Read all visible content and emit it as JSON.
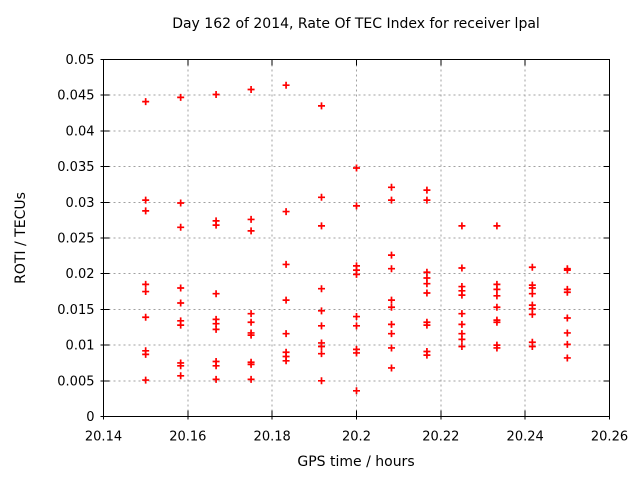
{
  "chart_data": {
    "type": "scatter",
    "title": "Day 162 of 2014, Rate Of TEC Index for receiver lpal",
    "xlabel": "GPS time / hours",
    "ylabel": "ROTI / TECUs",
    "xlim": [
      20.14,
      20.26
    ],
    "ylim": [
      0,
      0.05
    ],
    "xticks": [
      20.14,
      20.16,
      20.18,
      20.2,
      20.22,
      20.24,
      20.26
    ],
    "xtick_labels": [
      "20.14",
      "20.16",
      "20.18",
      "20.2",
      "20.22",
      "20.24",
      "20.26"
    ],
    "yticks": [
      0,
      0.005,
      0.01,
      0.015,
      0.02,
      0.025,
      0.03,
      0.035,
      0.04,
      0.045,
      0.05
    ],
    "ytick_labels": [
      "0",
      "0.005",
      "0.01",
      "0.015",
      "0.02",
      "0.025",
      "0.03",
      "0.035",
      "0.04",
      "0.045",
      "0.05"
    ],
    "grid": true,
    "legend": "none",
    "marker": {
      "shape": "plus",
      "color": "#ff0000",
      "size": 7
    },
    "colors": {
      "marker": "#ff0000",
      "grid": "#a0a0a0",
      "border": "#000000",
      "background": "#ffffff"
    },
    "points": [
      [
        20.15,
        0.0441
      ],
      [
        20.15,
        0.0303
      ],
      [
        20.15,
        0.0288
      ],
      [
        20.15,
        0.0185
      ],
      [
        20.15,
        0.0175
      ],
      [
        20.15,
        0.0139
      ],
      [
        20.15,
        0.0092
      ],
      [
        20.15,
        0.0087
      ],
      [
        20.15,
        0.0051
      ],
      [
        20.1583,
        0.0447
      ],
      [
        20.1583,
        0.0299
      ],
      [
        20.1583,
        0.0265
      ],
      [
        20.1583,
        0.018
      ],
      [
        20.1583,
        0.0159
      ],
      [
        20.1583,
        0.0134
      ],
      [
        20.1583,
        0.0128
      ],
      [
        20.1583,
        0.0075
      ],
      [
        20.1583,
        0.0071
      ],
      [
        20.1583,
        0.0057
      ],
      [
        20.1667,
        0.0451
      ],
      [
        20.1667,
        0.0274
      ],
      [
        20.1667,
        0.0268
      ],
      [
        20.1667,
        0.0172
      ],
      [
        20.1667,
        0.0136
      ],
      [
        20.1667,
        0.013
      ],
      [
        20.1667,
        0.0122
      ],
      [
        20.1667,
        0.0077
      ],
      [
        20.1667,
        0.0071
      ],
      [
        20.1667,
        0.0052
      ],
      [
        20.175,
        0.0458
      ],
      [
        20.175,
        0.0276
      ],
      [
        20.175,
        0.026
      ],
      [
        20.175,
        0.0144
      ],
      [
        20.175,
        0.0132
      ],
      [
        20.175,
        0.0117
      ],
      [
        20.175,
        0.0114
      ],
      [
        20.175,
        0.0076
      ],
      [
        20.175,
        0.0073
      ],
      [
        20.175,
        0.0052
      ],
      [
        20.1833,
        0.0464
      ],
      [
        20.1833,
        0.0287
      ],
      [
        20.1833,
        0.0213
      ],
      [
        20.1833,
        0.0163
      ],
      [
        20.1833,
        0.0116
      ],
      [
        20.1833,
        0.009
      ],
      [
        20.1833,
        0.0084
      ],
      [
        20.1833,
        0.0078
      ],
      [
        20.1917,
        0.0435
      ],
      [
        20.1917,
        0.0307
      ],
      [
        20.1917,
        0.0267
      ],
      [
        20.1917,
        0.0179
      ],
      [
        20.1917,
        0.0148
      ],
      [
        20.1917,
        0.0127
      ],
      [
        20.1917,
        0.0103
      ],
      [
        20.1917,
        0.0098
      ],
      [
        20.1917,
        0.0088
      ],
      [
        20.1917,
        0.005
      ],
      [
        20.2,
        0.0348
      ],
      [
        20.2,
        0.0295
      ],
      [
        20.2,
        0.0211
      ],
      [
        20.2,
        0.0205
      ],
      [
        20.2,
        0.0199
      ],
      [
        20.2,
        0.014
      ],
      [
        20.2,
        0.0127
      ],
      [
        20.2,
        0.0094
      ],
      [
        20.2,
        0.0089
      ],
      [
        20.2,
        0.0036
      ],
      [
        20.2083,
        0.0321
      ],
      [
        20.2083,
        0.0303
      ],
      [
        20.2083,
        0.0226
      ],
      [
        20.2083,
        0.0207
      ],
      [
        20.2083,
        0.0163
      ],
      [
        20.2083,
        0.0153
      ],
      [
        20.2083,
        0.0129
      ],
      [
        20.2083,
        0.0116
      ],
      [
        20.2083,
        0.0096
      ],
      [
        20.2083,
        0.0068
      ],
      [
        20.2167,
        0.0317
      ],
      [
        20.2167,
        0.0303
      ],
      [
        20.2167,
        0.0202
      ],
      [
        20.2167,
        0.0194
      ],
      [
        20.2167,
        0.0186
      ],
      [
        20.2167,
        0.0173
      ],
      [
        20.2167,
        0.0132
      ],
      [
        20.2167,
        0.0128
      ],
      [
        20.2167,
        0.0091
      ],
      [
        20.2167,
        0.0086
      ],
      [
        20.225,
        0.0267
      ],
      [
        20.225,
        0.0208
      ],
      [
        20.225,
        0.0182
      ],
      [
        20.225,
        0.0176
      ],
      [
        20.225,
        0.017
      ],
      [
        20.225,
        0.0144
      ],
      [
        20.225,
        0.0129
      ],
      [
        20.225,
        0.0116
      ],
      [
        20.225,
        0.0108
      ],
      [
        20.225,
        0.0098
      ],
      [
        20.2333,
        0.0267
      ],
      [
        20.2333,
        0.0185
      ],
      [
        20.2333,
        0.0178
      ],
      [
        20.2333,
        0.0169
      ],
      [
        20.2333,
        0.0153
      ],
      [
        20.2333,
        0.0135
      ],
      [
        20.2333,
        0.0132
      ],
      [
        20.2333,
        0.01
      ],
      [
        20.2333,
        0.0096
      ],
      [
        20.2417,
        0.0209
      ],
      [
        20.2417,
        0.0184
      ],
      [
        20.2417,
        0.018
      ],
      [
        20.2417,
        0.0172
      ],
      [
        20.2417,
        0.0156
      ],
      [
        20.2417,
        0.0151
      ],
      [
        20.2417,
        0.0143
      ],
      [
        20.2417,
        0.0104
      ],
      [
        20.2417,
        0.0098
      ],
      [
        20.25,
        0.0207
      ],
      [
        20.25,
        0.0205
      ],
      [
        20.25,
        0.0178
      ],
      [
        20.25,
        0.0174
      ],
      [
        20.25,
        0.0138
      ],
      [
        20.25,
        0.0117
      ],
      [
        20.25,
        0.0101
      ],
      [
        20.25,
        0.0082
      ]
    ]
  }
}
